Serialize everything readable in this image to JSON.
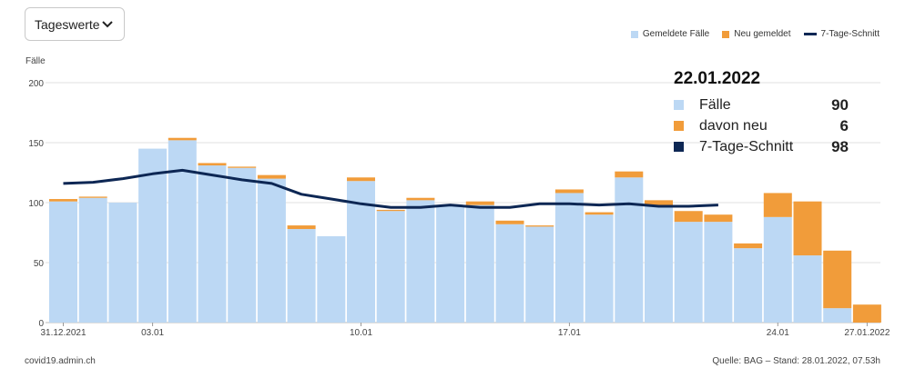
{
  "dropdown": {
    "label": "Tageswerte",
    "icon": "chevron-down-icon"
  },
  "colors": {
    "reported": "#bcd8f4",
    "new": "#f19c3a",
    "avg": "#0d2754",
    "grid": "#e2e2e2",
    "axis": "#444444"
  },
  "legend": [
    {
      "label": "Gemeldete Fälle",
      "kind": "reported"
    },
    {
      "label": "Neu gemeldet",
      "kind": "new"
    },
    {
      "label": "7-Tage-Schnitt",
      "kind": "avg"
    }
  ],
  "tooltip": {
    "date": "22.01.2022",
    "rows": [
      {
        "label": "Fälle",
        "value": "90",
        "kind": "reported"
      },
      {
        "label": "davon neu",
        "value": "6",
        "kind": "new"
      },
      {
        "label": "7-Tage-Schnitt",
        "value": "98",
        "kind": "avg"
      }
    ]
  },
  "footer": {
    "source_left": "covid19.admin.ch",
    "source_right": "Quelle: BAG – Stand: 28.01.2022, 07.53h"
  },
  "chart_data": {
    "type": "bar",
    "stacked": true,
    "ylabel": "Fälle",
    "ylim": [
      0,
      200
    ],
    "yticks": [
      0,
      50,
      100,
      150,
      200
    ],
    "grid": true,
    "legend_position": "top-right",
    "categories": [
      "31.12.2021",
      "01.01",
      "02.01",
      "03.01",
      "04.01",
      "05.01",
      "06.01",
      "07.01",
      "08.01",
      "09.01",
      "10.01",
      "11.01",
      "12.01",
      "13.01",
      "14.01",
      "15.01",
      "16.01",
      "17.01",
      "18.01",
      "19.01",
      "20.01",
      "21.01",
      "22.01",
      "23.01",
      "24.01",
      "25.01",
      "26.01",
      "27.01.2022"
    ],
    "x_tick_labels": [
      {
        "index": 0,
        "label": "31.12.2021"
      },
      {
        "index": 3,
        "label": "03.01"
      },
      {
        "index": 10,
        "label": "10.01"
      },
      {
        "index": 17,
        "label": "17.01"
      },
      {
        "index": 24,
        "label": "24.01"
      },
      {
        "index": 27,
        "label": "27.01.2022"
      }
    ],
    "series": [
      {
        "name": "Gemeldete Fälle",
        "kind": "reported",
        "values": [
          101,
          104,
          100,
          145,
          152,
          131,
          129,
          120,
          78,
          72,
          118,
          93,
          102,
          98,
          98,
          82,
          80,
          108,
          90,
          121,
          97,
          84,
          84,
          62,
          88,
          56,
          12,
          0
        ]
      },
      {
        "name": "Neu gemeldet",
        "kind": "new",
        "values": [
          2,
          1,
          0,
          0,
          2,
          2,
          1,
          3,
          3,
          0,
          3,
          1,
          2,
          0,
          3,
          3,
          1,
          3,
          2,
          5,
          5,
          9,
          6,
          4,
          20,
          45,
          48,
          15
        ]
      },
      {
        "name": "7-Tage-Schnitt",
        "kind": "avg",
        "type": "line",
        "values": [
          116,
          117,
          120,
          124,
          127,
          123,
          119,
          116,
          107,
          103,
          99,
          96,
          96,
          98,
          96,
          96,
          99,
          99,
          98,
          99,
          97,
          97,
          98,
          null,
          null,
          null,
          null,
          null
        ]
      }
    ]
  }
}
